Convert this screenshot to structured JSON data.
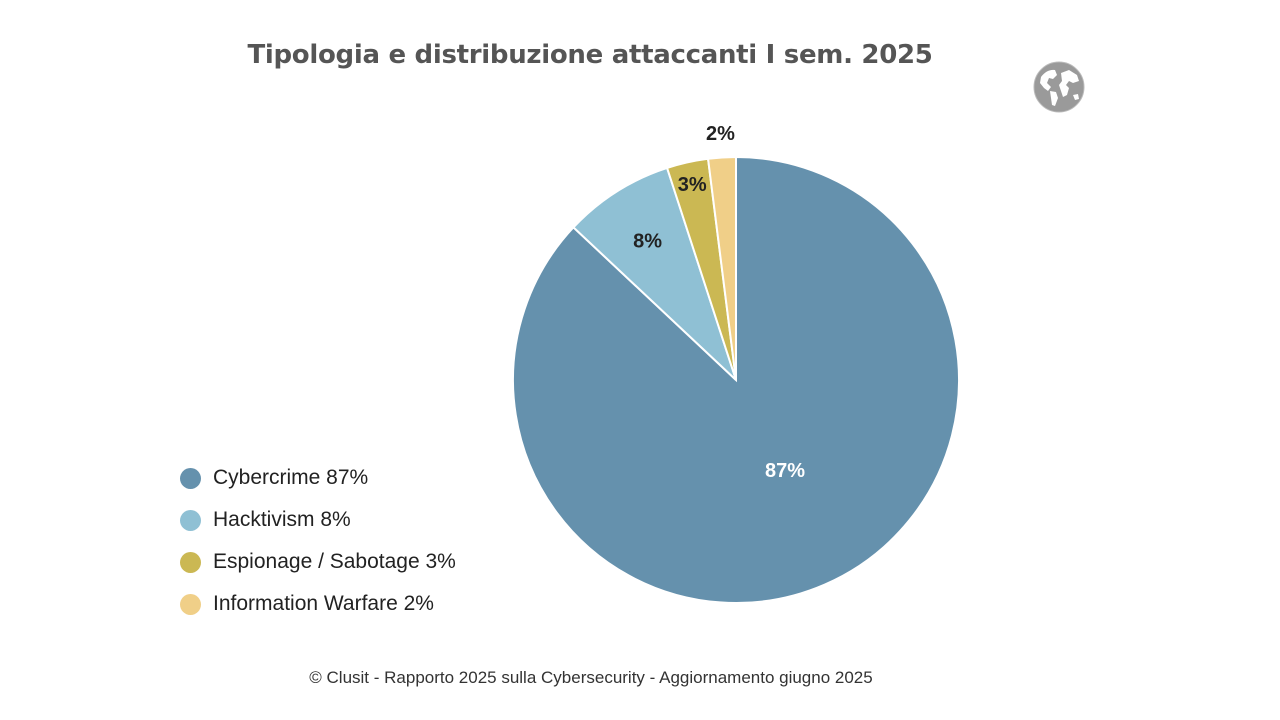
{
  "chart_data": {
    "type": "pie",
    "title": "Tipologia e distribuzione attaccanti I sem. 2025",
    "categories": [
      "Cybercrime",
      "Hacktivism",
      "Espionage / Sabotage",
      "Information Warfare"
    ],
    "values": [
      87,
      8,
      3,
      2
    ],
    "unit": "%",
    "data_labels": [
      "87%",
      "8%",
      "3%",
      "2%"
    ],
    "colors": [
      "#6591ad",
      "#8fc0d4",
      "#cbb853",
      "#f0cf88"
    ],
    "start_angle": "12 o'clock",
    "direction": "clockwise",
    "legend": {
      "placement": "bottom-left",
      "entries": [
        "Cybercrime 87%",
        "Hacktivism 8%",
        "Espionage / Sabotage 3%",
        "Information Warfare 2%"
      ]
    }
  },
  "icons": {
    "globe": "globe-icon"
  },
  "footer": "© Clusit - Rapporto 2025 sulla Cybersecurity - Aggiornamento giugno 2025"
}
